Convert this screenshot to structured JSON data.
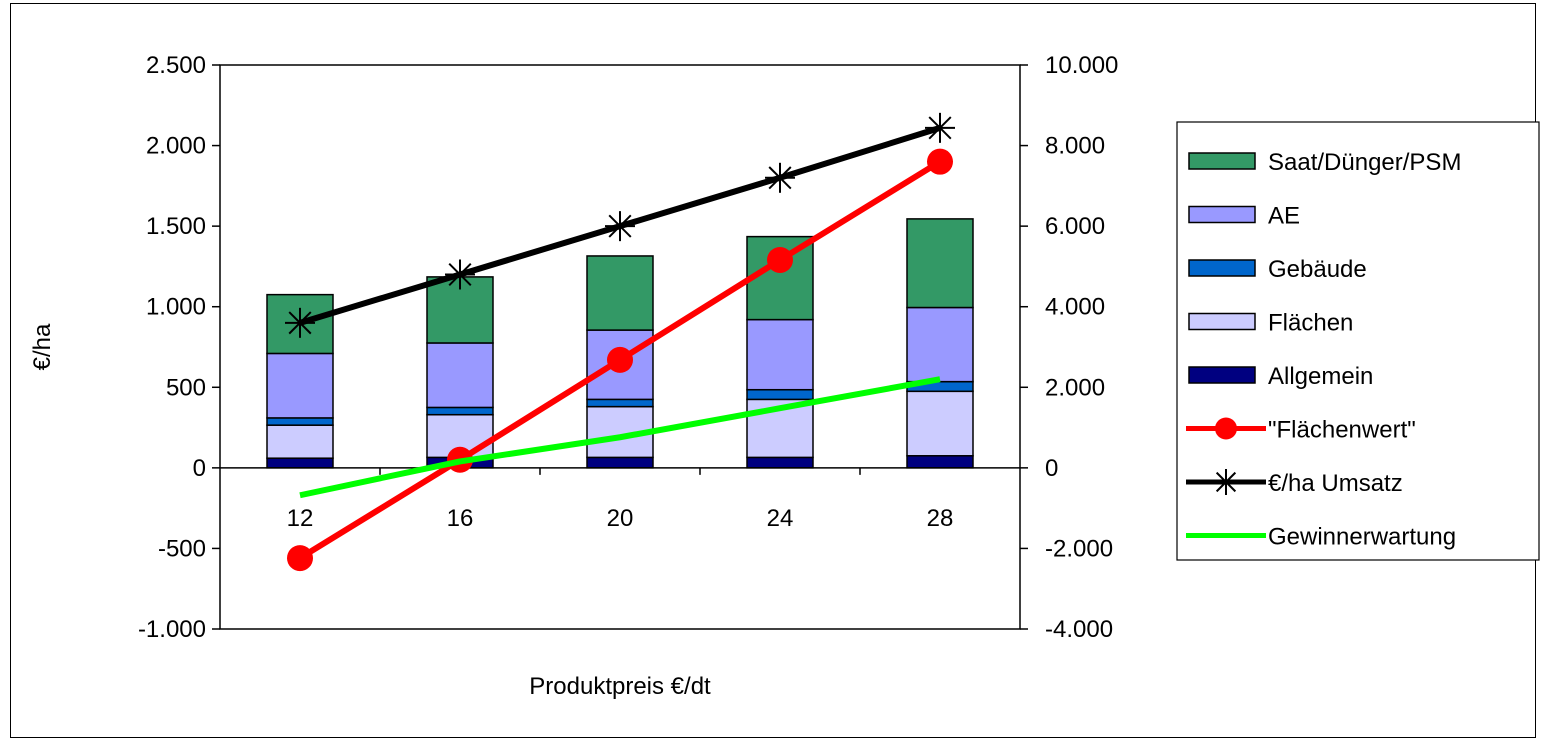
{
  "chart_data": {
    "type": "bar",
    "stacked": true,
    "categories": [
      "12",
      "16",
      "20",
      "24",
      "28"
    ],
    "xlabel": "Produktpreis €/dt",
    "ylabel": "€/ha",
    "y_left": {
      "range": [
        -1000,
        2500
      ],
      "ticks": [
        2500,
        2000,
        1500,
        1000,
        500,
        0,
        -500,
        -1000
      ],
      "tick_labels": [
        "2.500",
        "2.000",
        "1.500",
        "1.000",
        "500",
        "0",
        "-500",
        "-1.000"
      ]
    },
    "y_right": {
      "range": [
        -4000,
        10000
      ],
      "ticks": [
        10000,
        8000,
        6000,
        4000,
        2000,
        0,
        -2000,
        -4000
      ],
      "tick_labels": [
        "10.000",
        "8.000",
        "6.000",
        "4.000",
        "2.000",
        "0",
        "-2.000",
        "-4.000"
      ]
    },
    "bar_series": [
      {
        "name": "Allgemein",
        "color": "#000080",
        "values": [
          60,
          65,
          65,
          65,
          75
        ]
      },
      {
        "name": "Flächen",
        "color": "#ccccff",
        "values": [
          205,
          265,
          315,
          360,
          400
        ]
      },
      {
        "name": "Gebäude",
        "color": "#0066cc",
        "values": [
          45,
          45,
          45,
          60,
          60
        ]
      },
      {
        "name": "AE",
        "color": "#9999ff",
        "values": [
          400,
          400,
          430,
          435,
          460
        ]
      },
      {
        "name": "Saat/Dünger/PSM",
        "color": "#339966",
        "values": [
          365,
          410,
          460,
          515,
          550
        ]
      }
    ],
    "line_series": [
      {
        "name": "\"Flächenwert\"",
        "color": "#ff0000",
        "axis": "left",
        "marker": "circle",
        "values": [
          -560,
          50,
          670,
          1290,
          1900
        ]
      },
      {
        "name": "€/ha Umsatz",
        "color": "#000000",
        "axis": "left",
        "marker": "star",
        "values": [
          900,
          1200,
          1500,
          1800,
          2110
        ]
      },
      {
        "name": "Gewinnerwartung",
        "color": "#00ff00",
        "axis": "left",
        "marker": "none",
        "values": [
          -170,
          40,
          190,
          370,
          550
        ]
      }
    ],
    "legend": {
      "placement": "right",
      "entries": [
        "Saat/Dünger/PSM",
        "AE",
        "Gebäude",
        "Flächen",
        "Allgemein",
        "\"Flächenwert\"",
        "€/ha Umsatz",
        "Gewinnerwartung"
      ]
    },
    "grid": false
  }
}
